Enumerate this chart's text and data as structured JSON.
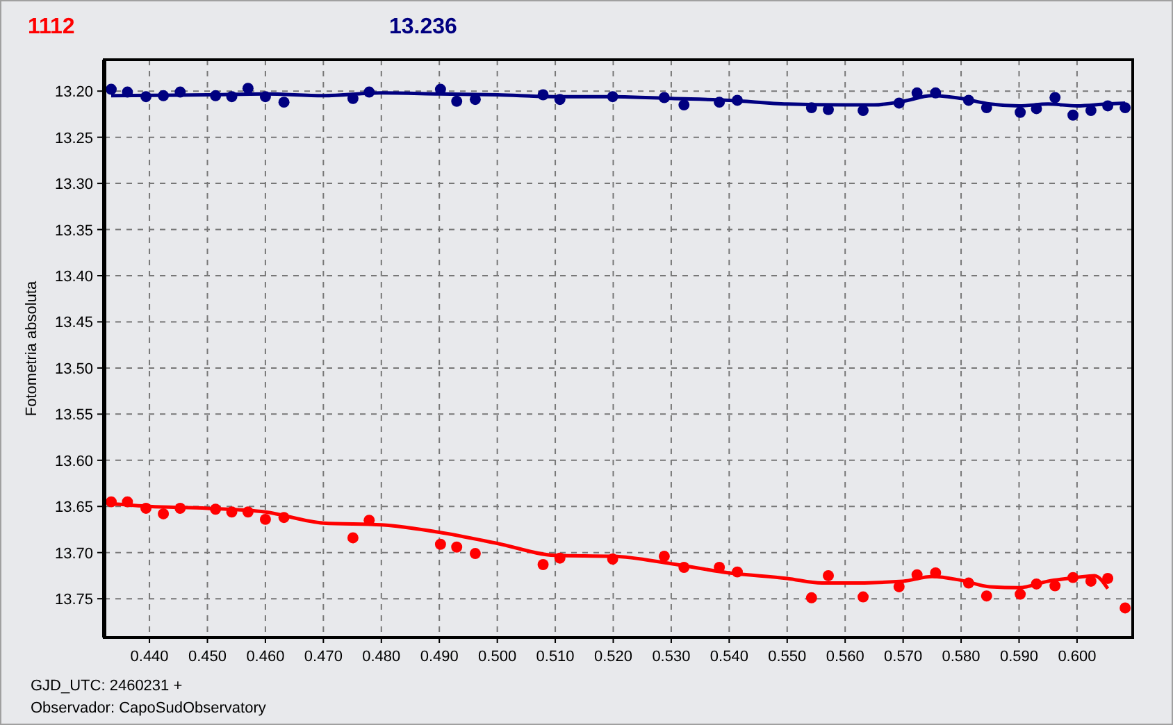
{
  "chart_data": {
    "type": "scatter",
    "title": "1112",
    "subtitle": "13.236",
    "ylabel": "Fotometria absoluta",
    "annotations": [
      "GJD_UTC: 2460231 +",
      "Observador: CapoSudObservatory"
    ],
    "xlim": [
      0.4322,
      0.6096
    ],
    "ylim": [
      13.792,
      13.166
    ],
    "xticks": [
      {
        "value": 0.44,
        "label": "0.440"
      },
      {
        "value": 0.45,
        "label": "0.450"
      },
      {
        "value": 0.46,
        "label": "0.460"
      },
      {
        "value": 0.47,
        "label": "0.470"
      },
      {
        "value": 0.48,
        "label": "0.480"
      },
      {
        "value": 0.49,
        "label": "0.490"
      },
      {
        "value": 0.5,
        "label": "0.500"
      },
      {
        "value": 0.51,
        "label": "0.510"
      },
      {
        "value": 0.52,
        "label": "0.520"
      },
      {
        "value": 0.53,
        "label": "0.530"
      },
      {
        "value": 0.54,
        "label": "0.540"
      },
      {
        "value": 0.55,
        "label": "0.550"
      },
      {
        "value": 0.56,
        "label": "0.560"
      },
      {
        "value": 0.57,
        "label": "0.570"
      },
      {
        "value": 0.58,
        "label": "0.580"
      },
      {
        "value": 0.59,
        "label": "0.590"
      },
      {
        "value": 0.6,
        "label": "0.600"
      }
    ],
    "yticks": [
      {
        "value": 13.2,
        "label": "13.20"
      },
      {
        "value": 13.25,
        "label": "13.25"
      },
      {
        "value": 13.3,
        "label": "13.30"
      },
      {
        "value": 13.35,
        "label": "13.35"
      },
      {
        "value": 13.4,
        "label": "13.40"
      },
      {
        "value": 13.45,
        "label": "13.45"
      },
      {
        "value": 13.5,
        "label": "13.50"
      },
      {
        "value": 13.55,
        "label": "13.55"
      },
      {
        "value": 13.6,
        "label": "13.60"
      },
      {
        "value": 13.65,
        "label": "13.65"
      },
      {
        "value": 13.7,
        "label": "13.70"
      },
      {
        "value": 13.75,
        "label": "13.75"
      }
    ],
    "grid": true,
    "marker": "circle",
    "x": [
      0.4334,
      0.4362,
      0.4394,
      0.4424,
      0.4453,
      0.4514,
      0.4542,
      0.457,
      0.46,
      0.4632,
      0.4751,
      0.4779,
      0.4902,
      0.493,
      0.4962,
      0.5079,
      0.5108,
      0.5199,
      0.5288,
      0.5322,
      0.5383,
      0.5414,
      0.5542,
      0.5571,
      0.5631,
      0.5693,
      0.5724,
      0.5756,
      0.5813,
      0.5844,
      0.5902,
      0.593,
      0.5962,
      0.5993,
      0.6024,
      0.6053,
      0.6083
    ],
    "series": [
      {
        "color": "#ff0000",
        "values": [
          13.645,
          13.645,
          13.652,
          13.658,
          13.652,
          13.653,
          13.656,
          13.656,
          13.664,
          13.662,
          13.684,
          13.665,
          13.691,
          13.694,
          13.701,
          13.713,
          13.706,
          13.707,
          13.704,
          13.716,
          13.716,
          13.721,
          13.749,
          13.725,
          13.748,
          13.737,
          13.724,
          13.722,
          13.733,
          13.747,
          13.745,
          13.734,
          13.736,
          13.727,
          13.731,
          13.728,
          13.76
        ]
      },
      {
        "color": "#000080",
        "values": [
          13.198,
          13.201,
          13.206,
          13.205,
          13.201,
          13.205,
          13.206,
          13.197,
          13.206,
          13.212,
          13.208,
          13.201,
          13.198,
          13.211,
          13.209,
          13.204,
          13.209,
          13.206,
          13.207,
          13.215,
          13.212,
          13.21,
          13.218,
          13.22,
          13.221,
          13.213,
          13.202,
          13.202,
          13.21,
          13.218,
          13.223,
          13.219,
          13.207,
          13.226,
          13.221,
          13.216,
          13.218
        ]
      },
      {
        "type": "line",
        "marker": "none",
        "color": "#ff0000",
        "x": [
          0.4334,
          0.44,
          0.45,
          0.46,
          0.47,
          0.48,
          0.49,
          0.5,
          0.51,
          0.52,
          0.53,
          0.54,
          0.55,
          0.556,
          0.56,
          0.57,
          0.575,
          0.58,
          0.585,
          0.59,
          0.595,
          0.6,
          0.603,
          0.6053
        ],
        "values": [
          13.647,
          13.65,
          13.652,
          13.656,
          13.668,
          13.67,
          13.678,
          13.69,
          13.703,
          13.704,
          13.712,
          13.722,
          13.728,
          13.733,
          13.733,
          13.731,
          13.726,
          13.73,
          13.737,
          13.738,
          13.731,
          13.727,
          13.725,
          13.739
        ]
      },
      {
        "type": "line",
        "marker": "none",
        "color": "#000080",
        "x": [
          0.4334,
          0.45,
          0.46,
          0.47,
          0.48,
          0.49,
          0.5,
          0.51,
          0.52,
          0.53,
          0.54,
          0.55,
          0.56,
          0.565,
          0.57,
          0.575,
          0.58,
          0.585,
          0.59,
          0.595,
          0.6,
          0.605,
          0.6083
        ],
        "values": [
          13.205,
          13.204,
          13.203,
          13.205,
          13.202,
          13.203,
          13.204,
          13.206,
          13.206,
          13.208,
          13.21,
          13.214,
          13.215,
          13.215,
          13.211,
          13.205,
          13.208,
          13.214,
          13.216,
          13.214,
          13.216,
          13.214,
          13.213
        ]
      }
    ]
  }
}
